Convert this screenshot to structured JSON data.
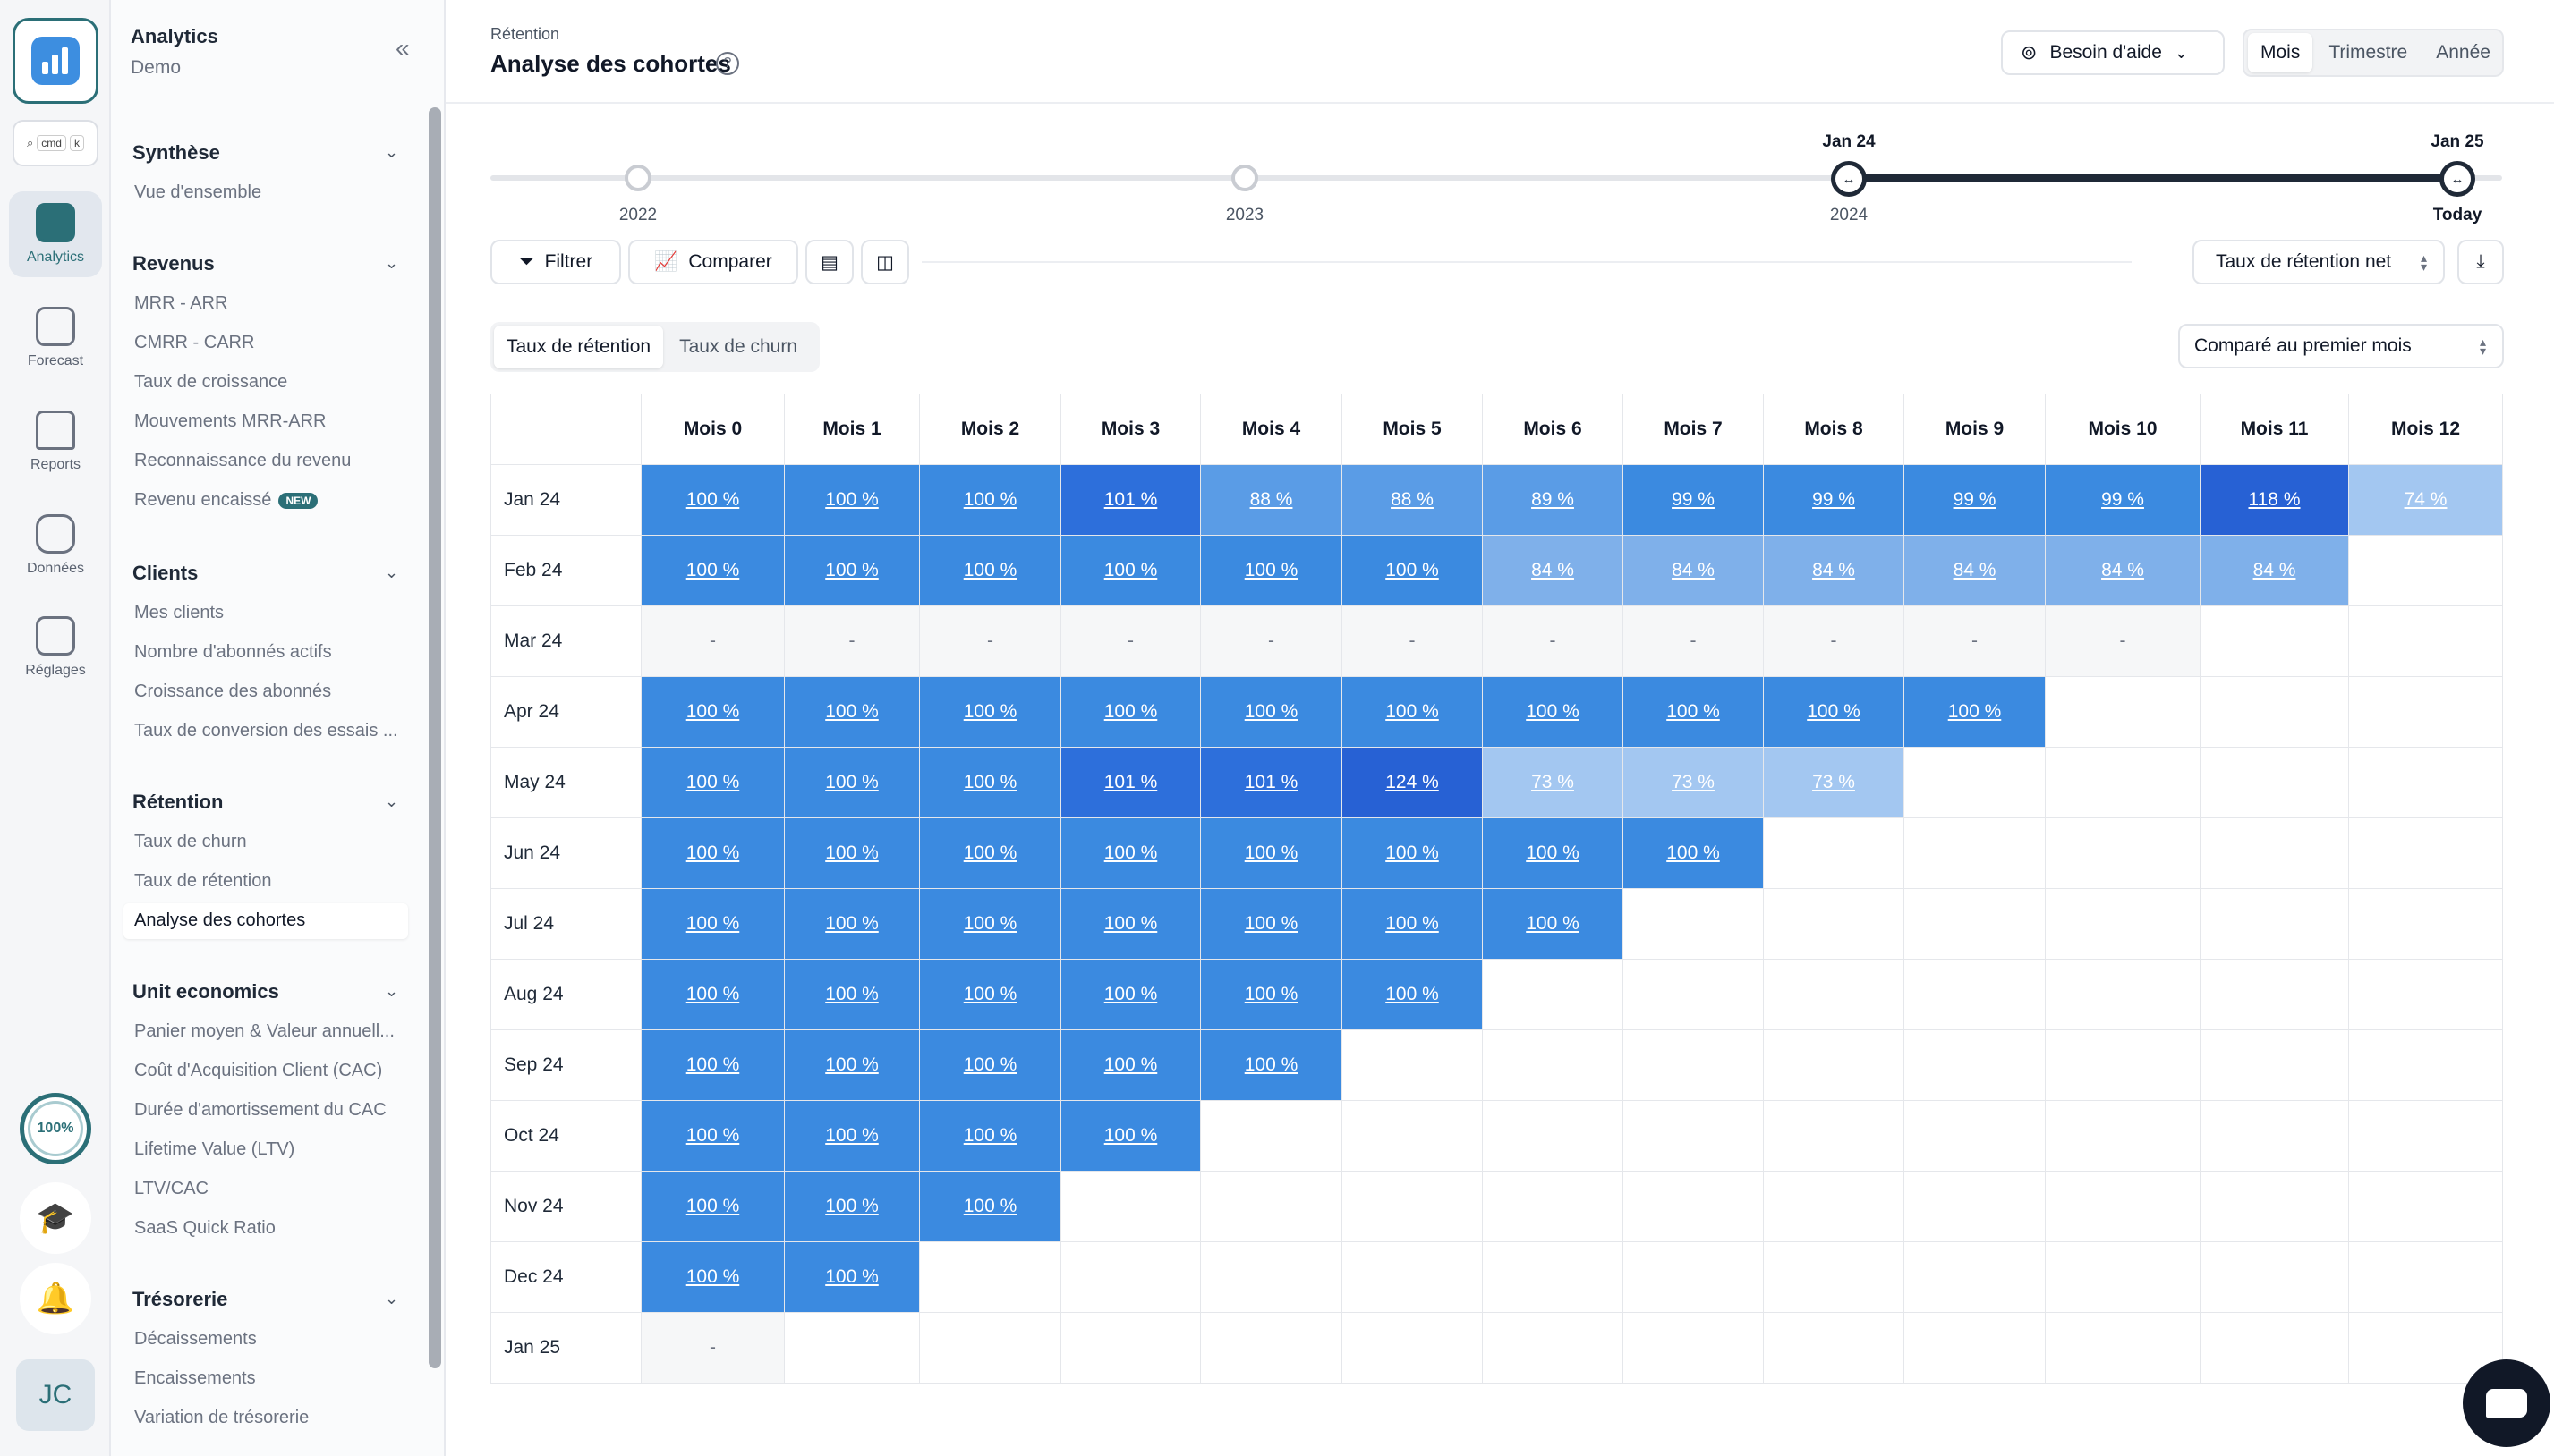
{
  "rail": {
    "cmdk": [
      "cmd",
      "k"
    ],
    "items": [
      {
        "label": "Analytics",
        "icon": "bar-chart-icon",
        "active": true
      },
      {
        "label": "Forecast",
        "icon": "forecast-icon",
        "active": false
      },
      {
        "label": "Reports",
        "icon": "reports-icon",
        "active": false
      },
      {
        "label": "Données",
        "icon": "database-icon",
        "active": false
      },
      {
        "label": "Réglages",
        "icon": "settings-icon",
        "active": false
      }
    ],
    "progress": "100%",
    "avatar": "JC"
  },
  "nav": {
    "title": "Analytics",
    "subtitle": "Demo",
    "sections": [
      {
        "title": "Synthèse",
        "items": [
          "Vue d'ensemble"
        ]
      },
      {
        "title": "Revenus",
        "items": [
          "MRR - ARR",
          "CMRR - CARR",
          "Taux de croissance",
          "Mouvements MRR-ARR",
          "Reconnaissance du revenu",
          "Revenu encaissé"
        ]
      },
      {
        "title": "Clients",
        "items": [
          "Mes clients",
          "Nombre d'abonnés actifs",
          "Croissance des abonnés",
          "Taux de conversion des essais ..."
        ]
      },
      {
        "title": "Rétention",
        "items": [
          "Taux de churn",
          "Taux de rétention",
          "Analyse des cohortes"
        ]
      },
      {
        "title": "Unit economics",
        "items": [
          "Panier moyen & Valeur annuell...",
          "Coût d'Acquisition Client (CAC)",
          "Durée d'amortissement du CAC",
          "Lifetime Value (LTV)",
          "LTV/CAC",
          "SaaS Quick Ratio"
        ]
      },
      {
        "title": "Trésorerie",
        "items": [
          "Décaissements",
          "Encaissements",
          "Variation de trésorerie"
        ]
      }
    ],
    "new_badge": "NEW",
    "active_item": "Analyse des cohortes"
  },
  "header": {
    "breadcrumb": "Rétention",
    "title": "Analyse des cohortes",
    "help_label": "Besoin d'aide",
    "periods": [
      "Mois",
      "Trimestre",
      "Année"
    ],
    "active_period": "Mois"
  },
  "timeline": {
    "labels": [
      "2022",
      "2023",
      "2024",
      "Today"
    ],
    "range_start": "Jan 24",
    "range_end": "Jan 25"
  },
  "toolbar": {
    "filter_label": "Filtrer",
    "compare_label": "Comparer",
    "metric_select": "Taux de rétention net",
    "compare_select": "Comparé au premier mois"
  },
  "rate_tabs": [
    "Taux de rétention",
    "Taux de churn"
  ],
  "active_rate_tab": "Taux de rétention",
  "cohort": {
    "columns": [
      "Mois 0",
      "Mois 1",
      "Mois 2",
      "Mois 3",
      "Mois 4",
      "Mois 5",
      "Mois 6",
      "Mois 7",
      "Mois 8",
      "Mois 9",
      "Mois 10",
      "Mois 11",
      "Mois 12"
    ],
    "rows": [
      {
        "label": "Jan 24",
        "values": [
          "100 %",
          "100 %",
          "100 %",
          "101 %",
          "88 %",
          "88 %",
          "89 %",
          "99 %",
          "99 %",
          "99 %",
          "99 %",
          "118 %",
          "74 %"
        ]
      },
      {
        "label": "Feb 24",
        "values": [
          "100 %",
          "100 %",
          "100 %",
          "100 %",
          "100 %",
          "100 %",
          "84 %",
          "84 %",
          "84 %",
          "84 %",
          "84 %",
          "84 %"
        ]
      },
      {
        "label": "Mar 24",
        "values": [
          "-",
          "-",
          "-",
          "-",
          "-",
          "-",
          "-",
          "-",
          "-",
          "-",
          "-"
        ]
      },
      {
        "label": "Apr 24",
        "values": [
          "100 %",
          "100 %",
          "100 %",
          "100 %",
          "100 %",
          "100 %",
          "100 %",
          "100 %",
          "100 %",
          "100 %"
        ]
      },
      {
        "label": "May 24",
        "values": [
          "100 %",
          "100 %",
          "100 %",
          "101 %",
          "101 %",
          "124 %",
          "73 %",
          "73 %",
          "73 %"
        ]
      },
      {
        "label": "Jun 24",
        "values": [
          "100 %",
          "100 %",
          "100 %",
          "100 %",
          "100 %",
          "100 %",
          "100 %",
          "100 %"
        ]
      },
      {
        "label": "Jul 24",
        "values": [
          "100 %",
          "100 %",
          "100 %",
          "100 %",
          "100 %",
          "100 %",
          "100 %"
        ]
      },
      {
        "label": "Aug 24",
        "values": [
          "100 %",
          "100 %",
          "100 %",
          "100 %",
          "100 %",
          "100 %"
        ]
      },
      {
        "label": "Sep 24",
        "values": [
          "100 %",
          "100 %",
          "100 %",
          "100 %",
          "100 %"
        ]
      },
      {
        "label": "Oct 24",
        "values": [
          "100 %",
          "100 %",
          "100 %",
          "100 %"
        ]
      },
      {
        "label": "Nov 24",
        "values": [
          "100 %",
          "100 %",
          "100 %"
        ]
      },
      {
        "label": "Dec 24",
        "values": [
          "100 %",
          "100 %"
        ]
      },
      {
        "label": "Jan 25",
        "values": [
          "-"
        ]
      }
    ]
  },
  "colors": {
    "accent": "#2b6f77",
    "cell_base": "#3b8ae0",
    "cell_high": "#2a6dd9",
    "cell_low": "#a3c7f1"
  }
}
